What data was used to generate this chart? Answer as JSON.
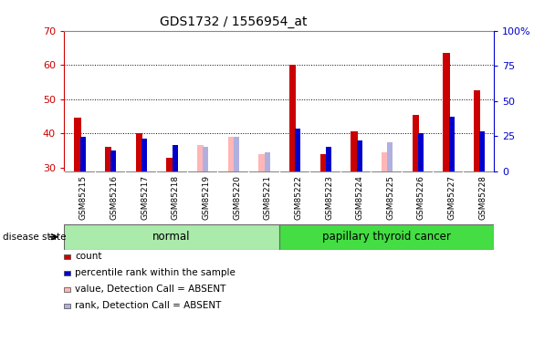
{
  "title": "GDS1732 / 1556954_at",
  "samples": [
    "GSM85215",
    "GSM85216",
    "GSM85217",
    "GSM85218",
    "GSM85219",
    "GSM85220",
    "GSM85221",
    "GSM85222",
    "GSM85223",
    "GSM85224",
    "GSM85225",
    "GSM85226",
    "GSM85227",
    "GSM85228"
  ],
  "groups": [
    "normal",
    "normal",
    "normal",
    "normal",
    "normal",
    "normal",
    "normal",
    "papillary thyroid cancer",
    "papillary thyroid cancer",
    "papillary thyroid cancer",
    "papillary thyroid cancer",
    "papillary thyroid cancer",
    "papillary thyroid cancer",
    "papillary thyroid cancer"
  ],
  "red_values": [
    44.5,
    36.0,
    40.0,
    33.0,
    null,
    null,
    null,
    60.0,
    34.0,
    40.5,
    null,
    45.5,
    63.5,
    52.5
  ],
  "blue_values_left": [
    39.0,
    35.0,
    38.5,
    36.5,
    null,
    null,
    null,
    41.5,
    36.0,
    38.0,
    null,
    40.0,
    45.0,
    40.5
  ],
  "pink_values": [
    null,
    null,
    null,
    null,
    36.5,
    39.0,
    34.0,
    null,
    null,
    null,
    34.5,
    null,
    null,
    null
  ],
  "lavender_values": [
    null,
    null,
    null,
    null,
    36.0,
    39.0,
    34.5,
    null,
    null,
    null,
    37.5,
    null,
    null,
    null
  ],
  "ylim_left": [
    29,
    70
  ],
  "ylim_right": [
    0,
    100
  ],
  "yticks_left": [
    30,
    40,
    50,
    60,
    70
  ],
  "yticks_right": [
    0,
    25,
    50,
    75,
    100
  ],
  "ybaseline": 29,
  "red_color": "#cc0000",
  "blue_color": "#0000cc",
  "pink_color": "#ffb6b6",
  "lavender_color": "#b0b0e0",
  "left_axis_color": "#cc0000",
  "right_axis_color": "#0000cc",
  "bg_color": "#ffffff",
  "plot_bg": "#ffffff",
  "label_bg": "#dddddd",
  "normal_color": "#aaeaaa",
  "cancer_color": "#44dd44",
  "legend_items": [
    "count",
    "percentile rank within the sample",
    "value, Detection Call = ABSENT",
    "rank, Detection Call = ABSENT"
  ],
  "legend_colors": [
    "#cc0000",
    "#0000cc",
    "#ffb6b6",
    "#b0b0e0"
  ]
}
